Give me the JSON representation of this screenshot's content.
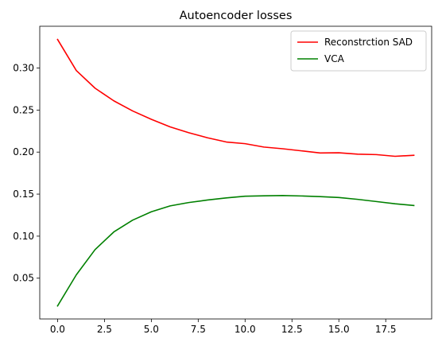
{
  "chart_data": {
    "type": "line",
    "title": "Autoencoder losses",
    "xlabel": "",
    "ylabel": "",
    "xlim": [
      -0.95,
      19.95
    ],
    "ylim": [
      0.0015,
      0.3497
    ],
    "xticks": [
      0.0,
      2.5,
      5.0,
      7.5,
      10.0,
      12.5,
      15.0,
      17.5
    ],
    "xtick_labels": [
      "0.0",
      "2.5",
      "5.0",
      "7.5",
      "10.0",
      "12.5",
      "15.0",
      "17.5"
    ],
    "yticks": [
      0.05,
      0.1,
      0.15,
      0.2,
      0.25,
      0.3
    ],
    "ytick_labels": [
      "0.05",
      "0.10",
      "0.15",
      "0.20",
      "0.25",
      "0.30"
    ],
    "grid": false,
    "legend_position": "top-right",
    "x": [
      0,
      1,
      2,
      3,
      4,
      5,
      6,
      7,
      8,
      9,
      10,
      11,
      12,
      13,
      14,
      15,
      16,
      17,
      18,
      19
    ],
    "series": [
      {
        "name": "Reconstrction SAD",
        "color": "#ff0000",
        "values": [
          0.334,
          0.297,
          0.276,
          0.261,
          0.249,
          0.239,
          0.23,
          0.223,
          0.217,
          0.212,
          0.21,
          0.206,
          0.204,
          0.2015,
          0.199,
          0.1992,
          0.1975,
          0.197,
          0.195,
          0.1962
        ]
      },
      {
        "name": "VCA",
        "color": "#008000",
        "values": [
          0.017,
          0.054,
          0.084,
          0.105,
          0.119,
          0.129,
          0.136,
          0.14,
          0.143,
          0.1455,
          0.1475,
          0.148,
          0.1483,
          0.1478,
          0.147,
          0.146,
          0.1438,
          0.1412,
          0.1385,
          0.1365
        ]
      }
    ]
  }
}
